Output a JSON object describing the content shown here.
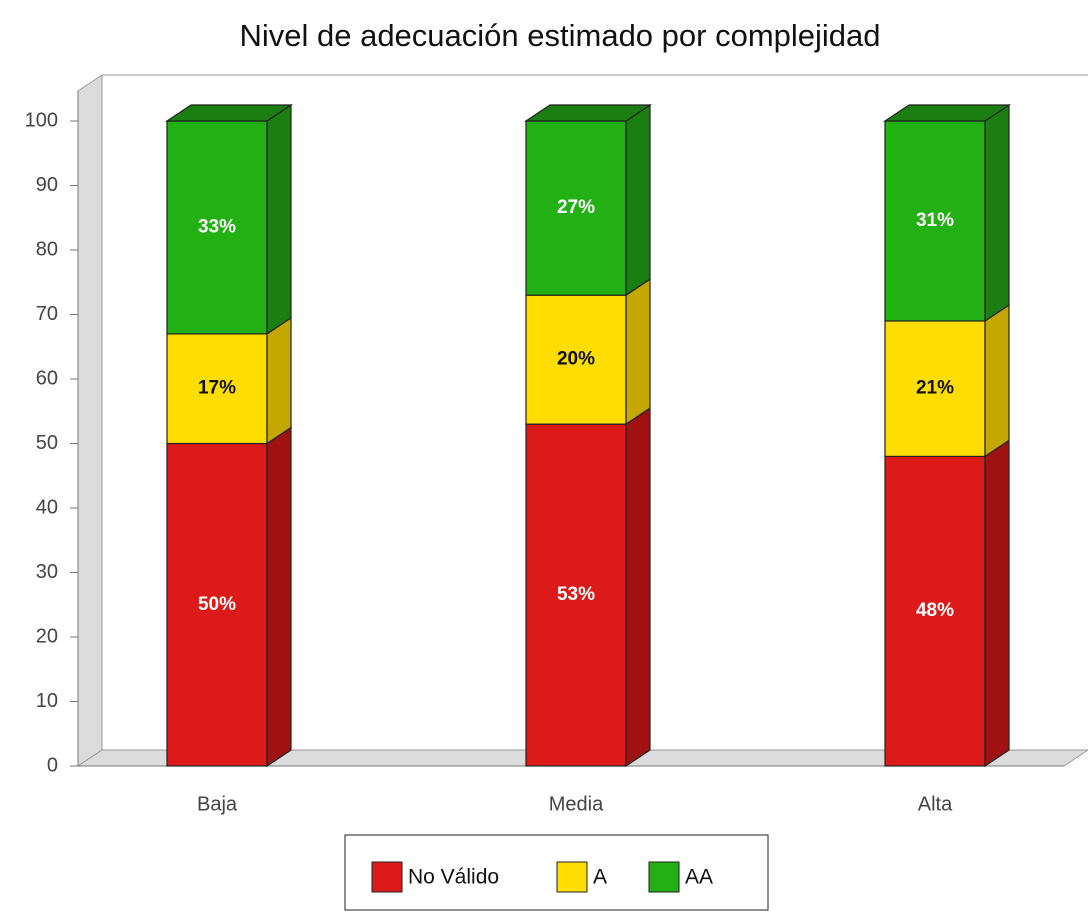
{
  "chart_data": {
    "type": "bar",
    "stacked": true,
    "title": "Nivel de adecuación estimado por complejidad",
    "categories": [
      "Baja",
      "Media",
      "Alta"
    ],
    "series": [
      {
        "name": "No Válido",
        "color": "#dd1a1a",
        "side_color": "#a01212",
        "label_color": "#ffffff",
        "values": [
          50,
          53,
          48
        ],
        "value_labels": [
          "50%",
          "53%",
          "48%"
        ]
      },
      {
        "name": "A",
        "color": "#ffdd00",
        "side_color": "#c4a800",
        "label_color": "#111111",
        "values": [
          17,
          20,
          21
        ],
        "value_labels": [
          "17%",
          "20%",
          "21%"
        ]
      },
      {
        "name": "AA",
        "color": "#22b014",
        "side_color": "#1a7f10",
        "label_color": "#ffffff",
        "values": [
          33,
          27,
          31
        ],
        "value_labels": [
          "33%",
          "27%",
          "31%"
        ]
      }
    ],
    "ylim": [
      0,
      100
    ],
    "yticks": [
      0,
      10,
      20,
      30,
      40,
      50,
      60,
      70,
      80,
      90,
      100
    ],
    "grid": false,
    "legend": "bottom"
  }
}
